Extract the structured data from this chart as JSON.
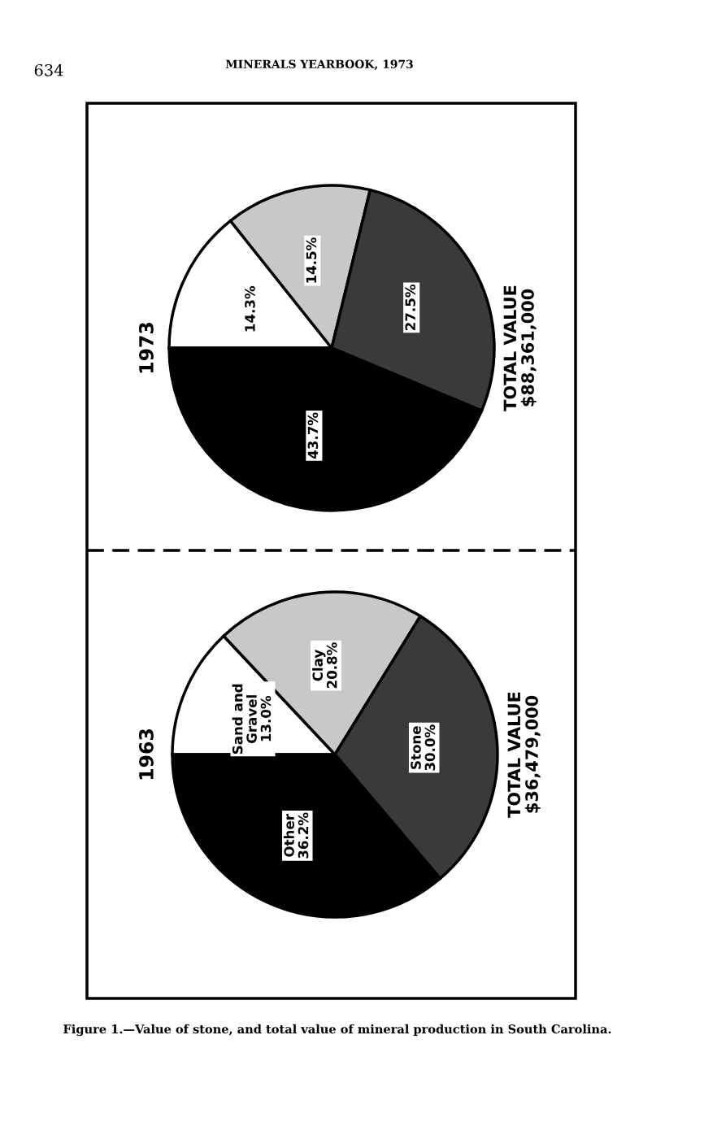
{
  "chart_data": [
    {
      "type": "pie",
      "title": "1973",
      "categories": [
        null,
        null,
        null,
        null
      ],
      "values": [
        14.3,
        14.5,
        27.5,
        43.7
      ],
      "value_labels": [
        "14.3%",
        "14.5%",
        "27.5%",
        "43.7%"
      ],
      "colors": [
        "#ffffff",
        "#c8c8c8",
        "#3a3a3a",
        "#000000"
      ],
      "annotations": [
        "634",
        "MINERALS YEARBOOK, 1973",
        "TOTAL VALUE\n$88,361,000"
      ]
    },
    {
      "type": "pie",
      "title": "1963",
      "categories": [
        "Sand and\nGravel",
        "Clay",
        "Stone",
        "Other"
      ],
      "values": [
        13.0,
        20.8,
        30.0,
        36.2
      ],
      "value_labels": [
        "13.0%",
        "20.8%",
        "30.0%",
        "36.2%"
      ],
      "colors": [
        "#ffffff",
        "#c8c8c8",
        "#3a3a3a",
        "#000000"
      ],
      "annotations": [
        "TOTAL VALUE\n$36,479,000",
        "Figure 1.—Value of stone, and total value of mineral production in South Carolina."
      ]
    }
  ]
}
